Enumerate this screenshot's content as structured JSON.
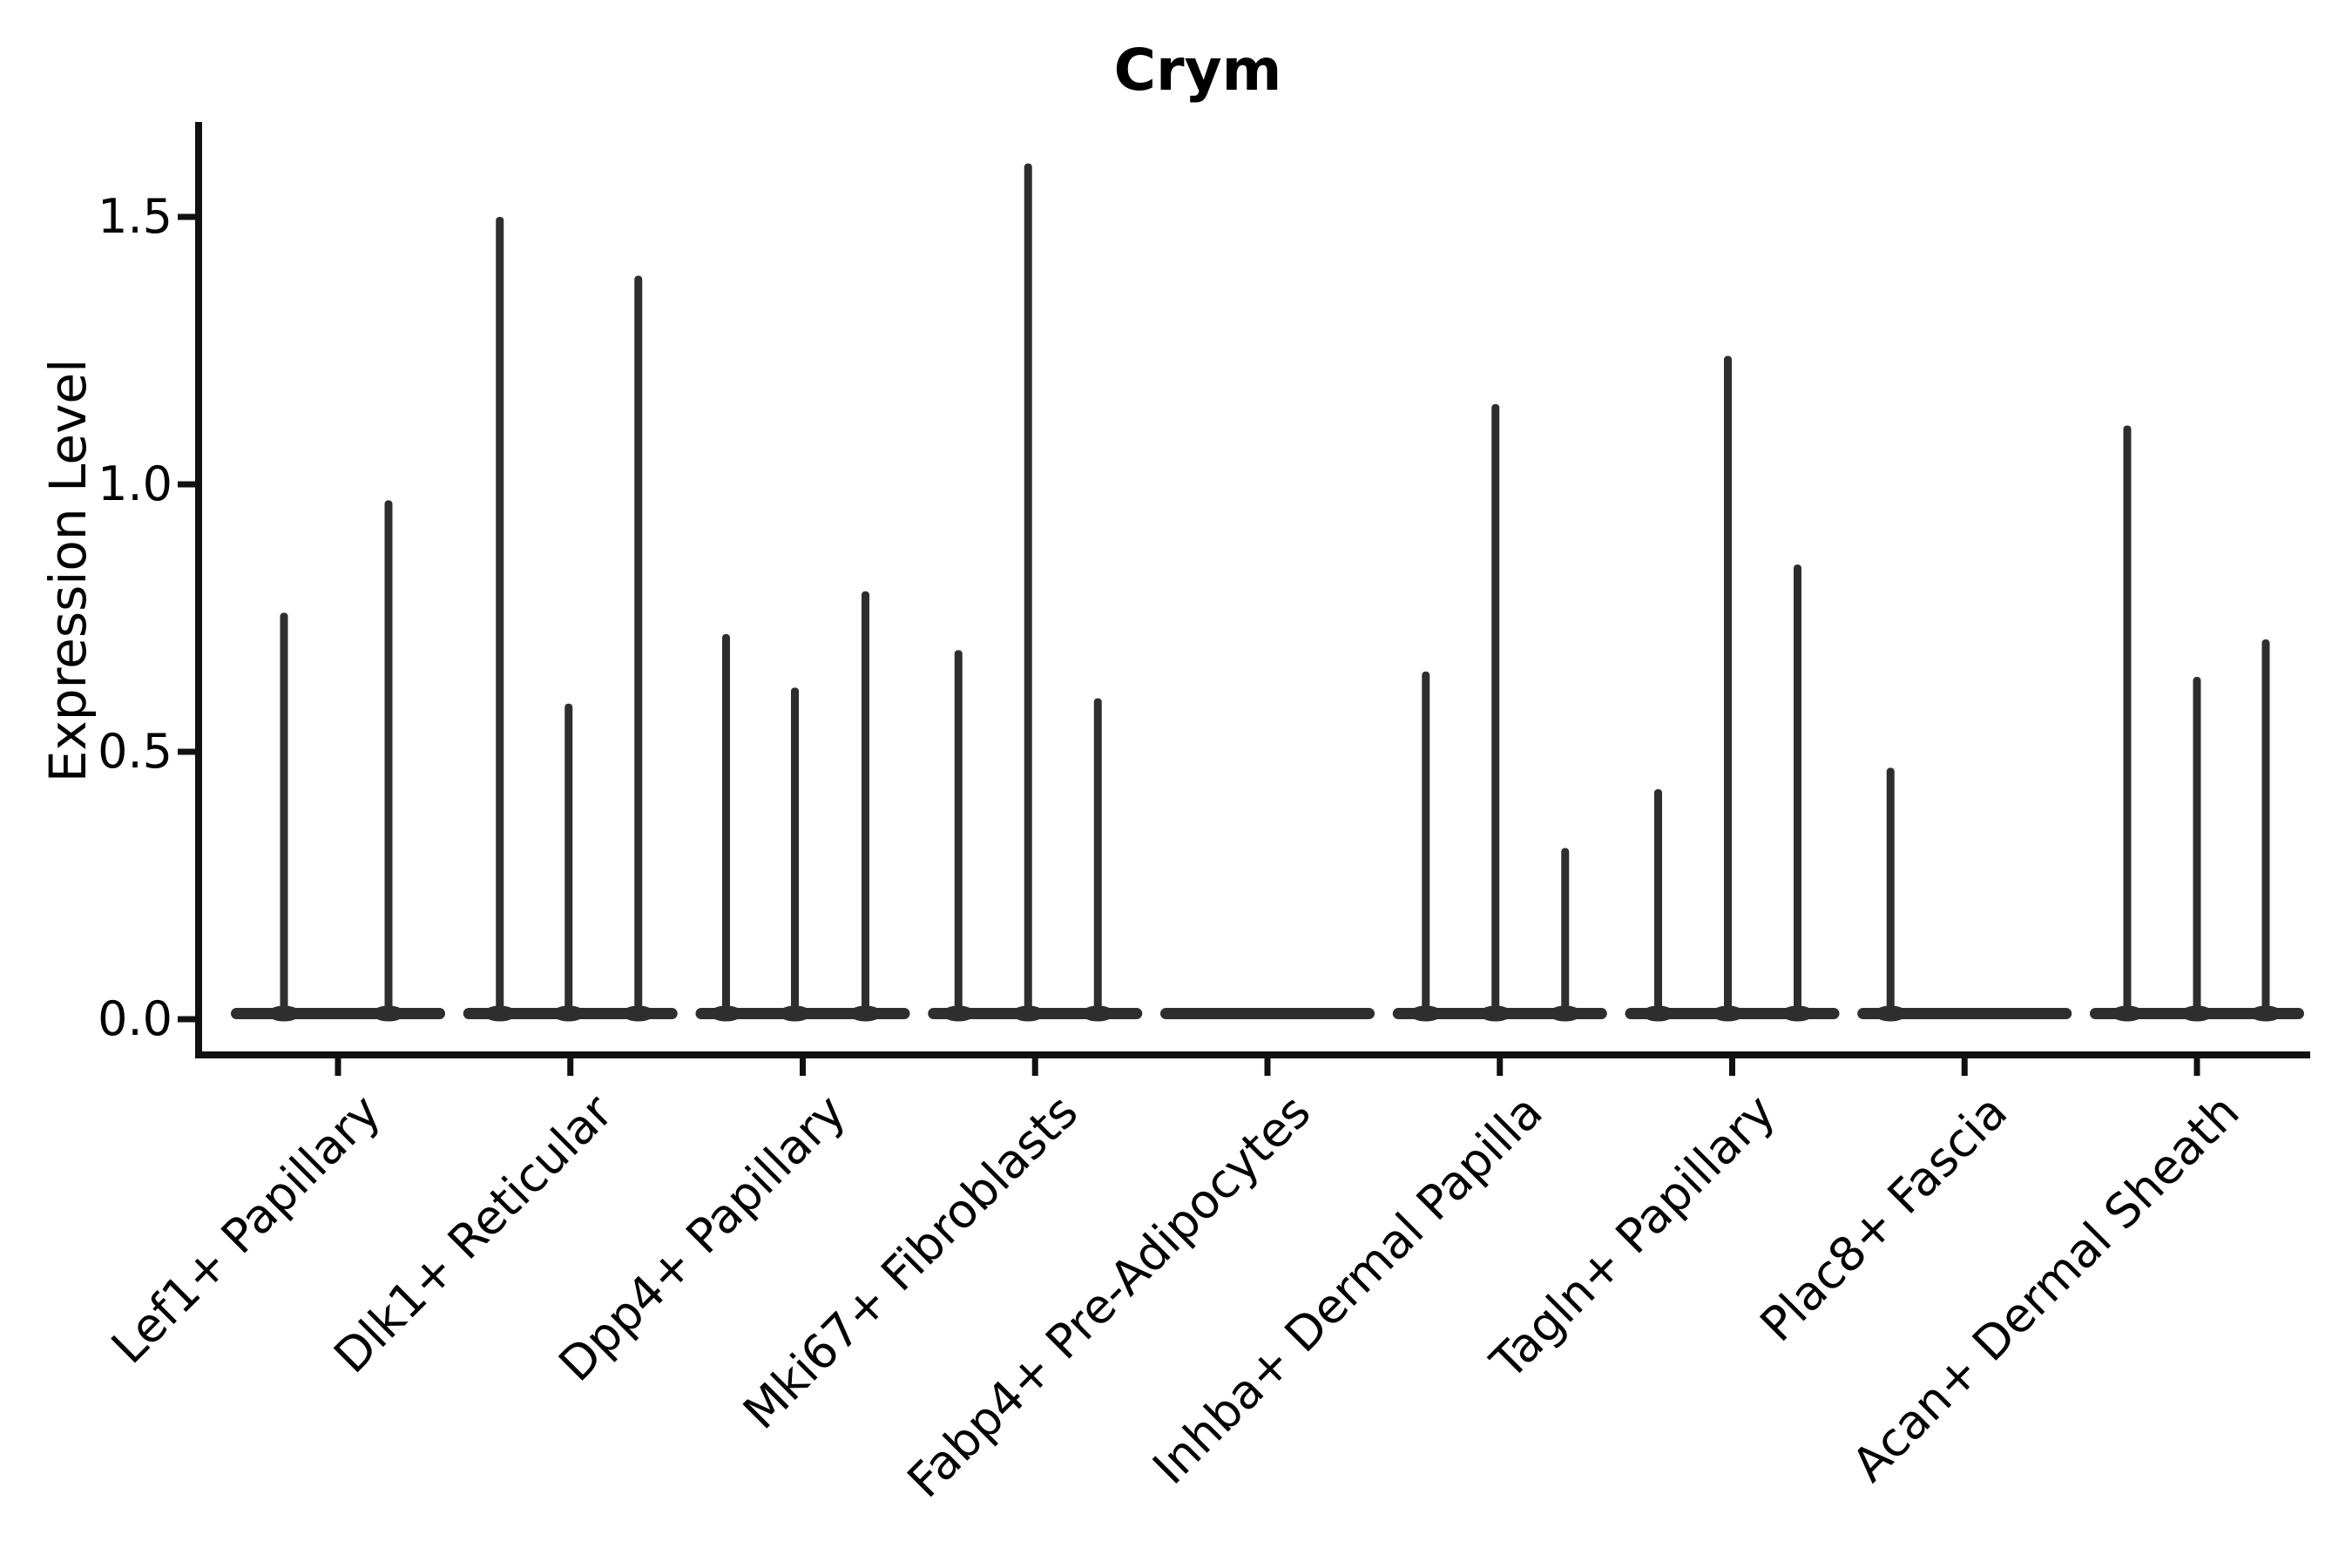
{
  "title": "Crym",
  "chart_data": {
    "type": "violin",
    "title": "Crym",
    "xlabel": "",
    "ylabel": "Expression Level",
    "ylim": [
      -0.07,
      1.68
    ],
    "yticks": [
      "0.0",
      "0.5",
      "1.0",
      "1.5"
    ],
    "ytick_values": [
      0.0,
      0.5,
      1.0,
      1.5
    ],
    "grid": false,
    "legend_position": "none",
    "colors": {
      "violin_fill": "#2e2e2e",
      "axis": "#111111",
      "text": "#000000",
      "background": "#ffffff"
    },
    "categories": [
      "Lef1+ Papillary",
      "Dlk1+ Reticular",
      "Dpp4+ Papillary",
      "Mki67+ Fibroblasts",
      "Fabp4+ Pre-Adipocytes",
      "Inhba+ Dermal Papilla",
      "Tagln+ Papillary",
      "Plac8+ Fascia",
      "Acan+ Dermal Sheath"
    ],
    "violins": [
      {
        "category": "Lef1+ Papillary",
        "spikes": [
          {
            "offset": -62,
            "peak": 0.76
          },
          {
            "offset": 58,
            "peak": 0.97
          }
        ]
      },
      {
        "category": "Dlk1+ Reticular",
        "spikes": [
          {
            "offset": -81,
            "peak": 1.5
          },
          {
            "offset": -2,
            "peak": 0.59
          },
          {
            "offset": 78,
            "peak": 1.39
          }
        ]
      },
      {
        "category": "Dpp4+ Papillary",
        "spikes": [
          {
            "offset": -88,
            "peak": 0.72
          },
          {
            "offset": -9,
            "peak": 0.62
          },
          {
            "offset": 72,
            "peak": 0.8
          }
        ]
      },
      {
        "category": "Mki67+ Fibroblasts",
        "spikes": [
          {
            "offset": -88,
            "peak": 0.69
          },
          {
            "offset": -8,
            "peak": 1.6
          },
          {
            "offset": 72,
            "peak": 0.6
          }
        ]
      },
      {
        "category": "Fabp4+ Pre-Adipocytes",
        "spikes": []
      },
      {
        "category": "Inhba+ Dermal Papilla",
        "spikes": [
          {
            "offset": -85,
            "peak": 0.65
          },
          {
            "offset": -5,
            "peak": 1.15
          },
          {
            "offset": 75,
            "peak": 0.32
          }
        ]
      },
      {
        "category": "Tagln+ Papillary",
        "spikes": [
          {
            "offset": -85,
            "peak": 0.43
          },
          {
            "offset": -5,
            "peak": 1.24
          },
          {
            "offset": 75,
            "peak": 0.85
          }
        ]
      },
      {
        "category": "Plac8+ Fascia",
        "spikes": [
          {
            "offset": -85,
            "peak": 0.47
          }
        ]
      },
      {
        "category": "Acan+ Dermal Sheath",
        "spikes": [
          {
            "offset": -80,
            "peak": 1.11
          },
          {
            "offset": 0,
            "peak": 0.64
          },
          {
            "offset": 79,
            "peak": 0.71
          }
        ]
      }
    ],
    "base_bar": {
      "halfwidth": 123,
      "thickness": 13
    }
  }
}
